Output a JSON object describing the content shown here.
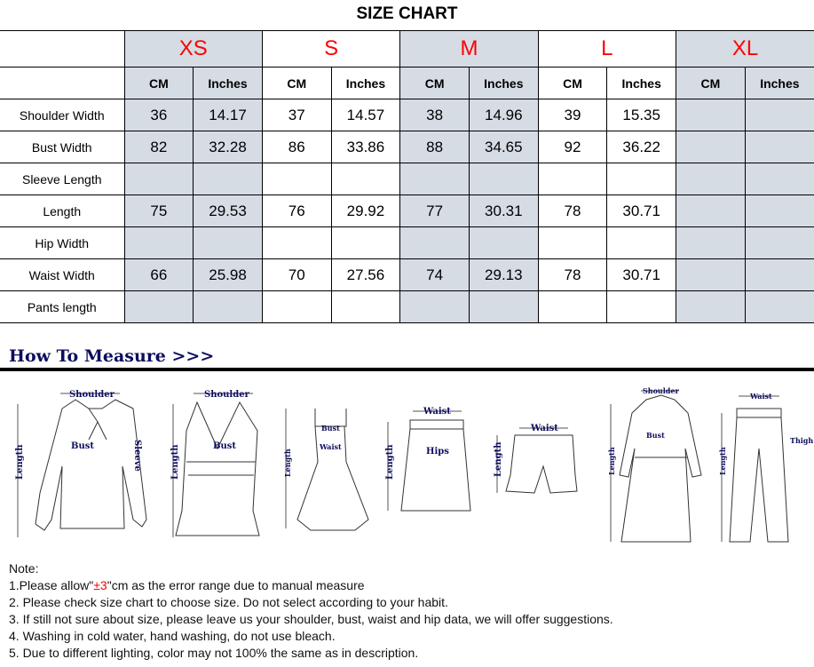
{
  "title": "SIZE CHART",
  "sizes": [
    "XS",
    "S",
    "M",
    "L",
    "XL"
  ],
  "units": [
    "CM",
    "Inches"
  ],
  "rows": [
    {
      "label": "Shoulder Width",
      "values": [
        "36",
        "14.17",
        "37",
        "14.57",
        "38",
        "14.96",
        "39",
        "15.35",
        "",
        ""
      ]
    },
    {
      "label": "Bust Width",
      "values": [
        "82",
        "32.28",
        "86",
        "33.86",
        "88",
        "34.65",
        "92",
        "36.22",
        "",
        ""
      ]
    },
    {
      "label": "Sleeve Length",
      "values": [
        "",
        "",
        "",
        "",
        "",
        "",
        "",
        "",
        "",
        ""
      ]
    },
    {
      "label": "Length",
      "values": [
        "75",
        "29.53",
        "76",
        "29.92",
        "77",
        "30.31",
        "78",
        "30.71",
        "",
        ""
      ]
    },
    {
      "label": "Hip Width",
      "values": [
        "",
        "",
        "",
        "",
        "",
        "",
        "",
        "",
        "",
        ""
      ]
    },
    {
      "label": "Waist Width",
      "values": [
        "66",
        "25.98",
        "70",
        "27.56",
        "74",
        "29.13",
        "78",
        "30.71",
        "",
        ""
      ]
    },
    {
      "label": "Pants length",
      "values": [
        "",
        "",
        "",
        "",
        "",
        "",
        "",
        "",
        "",
        ""
      ]
    }
  ],
  "how_to_measure": "How To Measure >>>",
  "labels": {
    "shoulder": "Shoulder",
    "bust": "Bust",
    "sleeve": "Sleeve",
    "length": "Length",
    "waist": "Waist",
    "hips": "Hips",
    "thigh": "Thigh"
  },
  "notes": {
    "heading": "Note:",
    "n1_pre": "1.Please allow\"",
    "n1_red": "±3",
    "n1_post": "\"cm as the error range due to manual measure",
    "n2": "2. Please check size chart to choose size. Do not select according to your habit.",
    "n3": "3. If still not sure about size, please leave us your shoulder, bust, waist and hip data, we will offer suggestions.",
    "n4": "4. Washing in cold water, hand washing, do not use bleach.",
    "n5": "5. Due to different lighting, color may not 100% the same as in description."
  },
  "colors": {
    "shade": "#d6dce4",
    "size_label": "#ff0000",
    "measure_label": "#0d0d5e"
  }
}
